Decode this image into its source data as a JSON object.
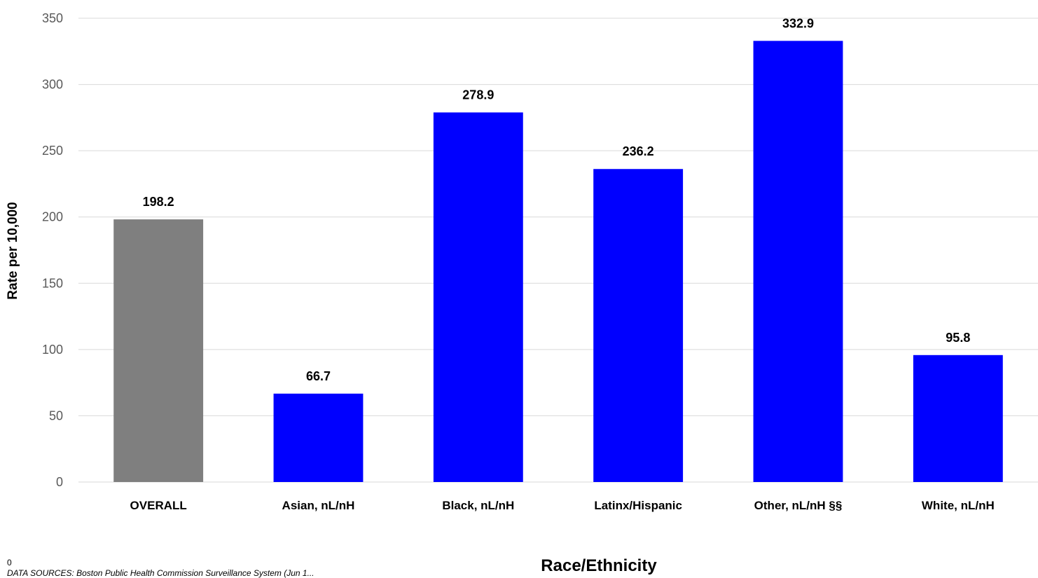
{
  "chart_data": {
    "type": "bar",
    "title": "",
    "xlabel": "Race/Ethnicity",
    "ylabel": "Rate per 10,000",
    "categories": [
      "OVERALL",
      "Asian, nL/nH",
      "Black, nL/nH",
      "Latinx/Hispanic",
      "Other, nL/nH §§",
      "White, nL/nH"
    ],
    "values": [
      198.2,
      66.7,
      278.9,
      236.2,
      332.9,
      95.8
    ],
    "data_labels": [
      "198.2",
      "66.7",
      "278.9",
      "236.2",
      "332.9",
      "95.8"
    ],
    "bar_colors": [
      "#7f7f7f",
      "#0000ff",
      "#0000ff",
      "#0000ff",
      "#0000ff",
      "#0000ff"
    ],
    "ylim": [
      0,
      350
    ],
    "yticks": [
      0,
      50,
      100,
      150,
      200,
      250,
      300,
      350
    ],
    "grid": true,
    "legend": "none"
  },
  "notes": {
    "zero_marker": "0",
    "source": "DATA SOURCES: Boston Public Health Commission Surveillance System (Jun 1..."
  }
}
